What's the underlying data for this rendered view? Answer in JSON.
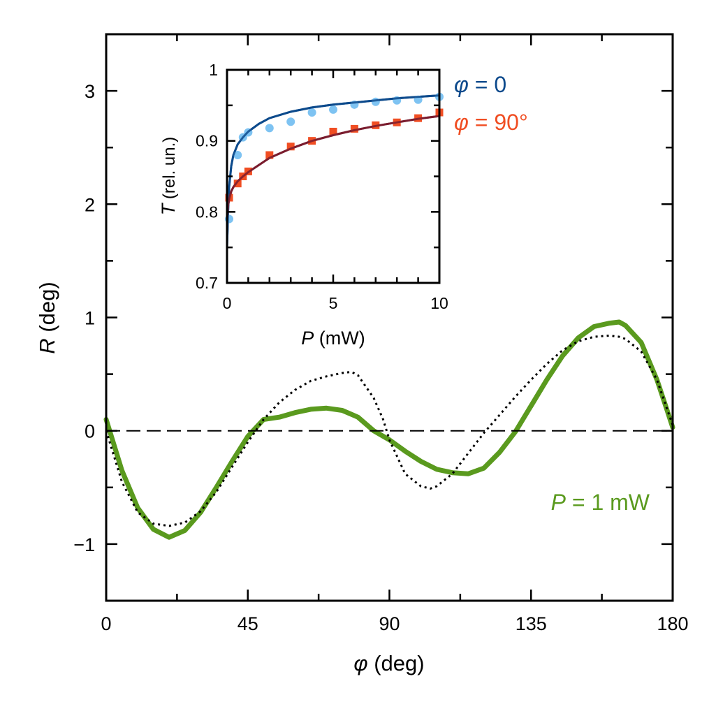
{
  "chart_data": [
    {
      "type": "line",
      "xlabel_symbol": "φ",
      "xlabel_unit": " (deg)",
      "ylabel_symbol": "R",
      "ylabel_unit": " (deg)",
      "xlim": [
        0,
        180
      ],
      "ylim": [
        -1.5,
        3.5
      ],
      "xticks": [
        0,
        45,
        90,
        135,
        180
      ],
      "xtick_labels": [
        "0",
        "45",
        "90",
        "135",
        "180"
      ],
      "yticks": [
        -1,
        0,
        1,
        2,
        3
      ],
      "ytick_labels": [
        "−1",
        "0",
        "1",
        "2",
        "3"
      ],
      "grid": false,
      "annotation_symbol": "P",
      "annotation_text": " = 1 mW",
      "annotation_color": "#5a9a1e",
      "series": [
        {
          "style": "thick-solid",
          "color": "#5a9a1e",
          "x": [
            0,
            5,
            10,
            15,
            20,
            25,
            30,
            35,
            40,
            45,
            50,
            55,
            60,
            65,
            70,
            75,
            80,
            85,
            90,
            95,
            100,
            105,
            110,
            115,
            120,
            125,
            130,
            135,
            140,
            145,
            150,
            155,
            160,
            163,
            165,
            170,
            175,
            178,
            180
          ],
          "y": [
            0.1,
            -0.35,
            -0.68,
            -0.87,
            -0.94,
            -0.88,
            -0.72,
            -0.5,
            -0.27,
            -0.05,
            0.1,
            0.12,
            0.16,
            0.19,
            0.2,
            0.18,
            0.12,
            0.0,
            -0.08,
            -0.18,
            -0.27,
            -0.34,
            -0.37,
            -0.38,
            -0.33,
            -0.19,
            -0.01,
            0.22,
            0.45,
            0.66,
            0.82,
            0.92,
            0.95,
            0.96,
            0.93,
            0.78,
            0.45,
            0.2,
            0.03
          ]
        },
        {
          "style": "dotted",
          "color": "#000000",
          "x": [
            0,
            5,
            10,
            15,
            20,
            25,
            30,
            35,
            40,
            45,
            50,
            55,
            60,
            65,
            70,
            75,
            78,
            80,
            85,
            88,
            90,
            95,
            100,
            103,
            105,
            110,
            115,
            120,
            125,
            130,
            135,
            140,
            145,
            150,
            155,
            160,
            163,
            165,
            170,
            175,
            180
          ],
          "y": [
            0.0,
            -0.45,
            -0.72,
            -0.82,
            -0.84,
            -0.81,
            -0.71,
            -0.54,
            -0.32,
            -0.1,
            0.1,
            0.25,
            0.36,
            0.44,
            0.48,
            0.51,
            0.52,
            0.49,
            0.29,
            0.1,
            -0.08,
            -0.38,
            -0.49,
            -0.51,
            -0.49,
            -0.38,
            -0.2,
            -0.02,
            0.14,
            0.3,
            0.45,
            0.59,
            0.71,
            0.79,
            0.83,
            0.84,
            0.83,
            0.81,
            0.7,
            0.45,
            0.05
          ]
        },
        {
          "style": "dashed-zero",
          "color": "#000000",
          "x": [
            0,
            180
          ],
          "y": [
            0,
            0
          ]
        }
      ]
    },
    {
      "type": "scatter",
      "xlabel_symbol": "P",
      "xlabel_unit": " (mW)",
      "ylabel_symbol": "T",
      "ylabel_unit": " (rel. un.)",
      "xlim": [
        0,
        10
      ],
      "ylim": [
        0.7,
        1.0
      ],
      "xticks": [
        0,
        5,
        10
      ],
      "xtick_labels": [
        "0",
        "5",
        "10"
      ],
      "yticks": [
        0.7,
        0.8,
        0.9,
        1.0
      ],
      "ytick_labels": [
        "0.7",
        "0.8",
        "0.9",
        "1"
      ],
      "legend": [
        {
          "symbol": "φ",
          "text": " = 0",
          "color": "#0d4a8c"
        },
        {
          "symbol": "φ",
          "text": " = 90°",
          "color": "#f04e23"
        }
      ],
      "series": [
        {
          "marker": "circle",
          "color": "#7ec3f2",
          "x": [
            0.1,
            0.5,
            0.75,
            1.0,
            2.0,
            3.0,
            4.0,
            5.0,
            6.0,
            7.0,
            8.0,
            9.0,
            10.0
          ],
          "y": [
            0.79,
            0.88,
            0.905,
            0.912,
            0.918,
            0.927,
            0.94,
            0.944,
            0.951,
            0.955,
            0.957,
            0.958,
            0.962
          ]
        },
        {
          "marker": "square",
          "color": "#f04e23",
          "x": [
            0.1,
            0.5,
            0.75,
            1.0,
            2.0,
            3.0,
            4.0,
            5.0,
            6.0,
            7.0,
            8.0,
            9.0,
            10.0
          ],
          "y": [
            0.82,
            0.84,
            0.85,
            0.857,
            0.88,
            0.892,
            0.9,
            0.913,
            0.917,
            0.922,
            0.926,
            0.932,
            0.94
          ]
        },
        {
          "line": "fit",
          "color": "#0d4a8c",
          "x": [
            0.0,
            0.05,
            0.1,
            0.2,
            0.3,
            0.5,
            0.75,
            1.0,
            1.5,
            2.0,
            3.0,
            4.0,
            5.0,
            6.0,
            7.0,
            8.0,
            9.0,
            10.0
          ],
          "y": [
            0.75,
            0.8,
            0.835,
            0.865,
            0.88,
            0.895,
            0.905,
            0.913,
            0.924,
            0.932,
            0.941,
            0.947,
            0.951,
            0.954,
            0.957,
            0.96,
            0.962,
            0.964
          ]
        },
        {
          "line": "fit",
          "color": "#7a1c2e",
          "x": [
            0.0,
            0.05,
            0.1,
            0.2,
            0.3,
            0.5,
            0.75,
            1.0,
            1.5,
            2.0,
            3.0,
            4.0,
            5.0,
            6.0,
            7.0,
            8.0,
            9.0,
            10.0
          ],
          "y": [
            0.79,
            0.808,
            0.818,
            0.829,
            0.835,
            0.843,
            0.85,
            0.856,
            0.866,
            0.876,
            0.889,
            0.9,
            0.908,
            0.915,
            0.921,
            0.926,
            0.931,
            0.935
          ]
        }
      ]
    }
  ]
}
